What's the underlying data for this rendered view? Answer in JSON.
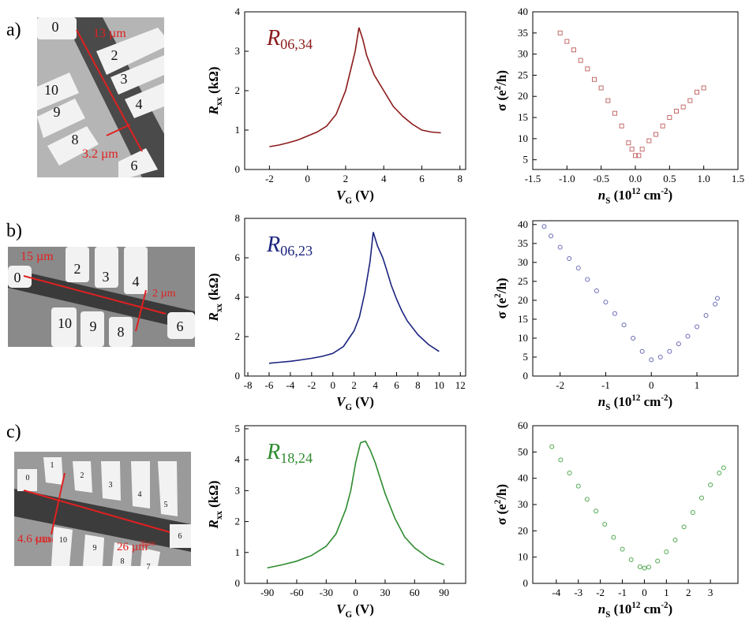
{
  "panels": [
    {
      "letter": "a)",
      "electrodes": [
        "0",
        "2",
        "3",
        "4",
        "10",
        "9",
        "8",
        "6"
      ],
      "scales": [
        "13 µm",
        "3.2 µm"
      ]
    },
    {
      "letter": "b)",
      "electrodes": [
        "0",
        "2",
        "3",
        "4",
        "10",
        "9",
        "8",
        "6"
      ],
      "scales": [
        "15 µm",
        "2 µm"
      ]
    },
    {
      "letter": "c)",
      "electrodes": [
        "0",
        "1",
        "2",
        "3",
        "4",
        "5",
        "10",
        "9",
        "8",
        "7",
        "6"
      ],
      "scales": [
        "4.6 µm",
        "4.6µm",
        "26 µm",
        "26µm"
      ]
    }
  ],
  "chart_data": [
    {
      "type": "line",
      "label": [
        {
          "t": "R",
          "italic": true
        },
        {
          "t": "06,34",
          "sub": true
        }
      ],
      "xlabel": [
        {
          "t": "V",
          "italic": true
        },
        {
          "t": "G",
          "sub": true
        },
        {
          "t": " (V)"
        }
      ],
      "ylabel": [
        {
          "t": "R",
          "italic": true
        },
        {
          "t": "xx",
          "sub": true
        },
        {
          "t": " (kΩ)"
        }
      ],
      "x": [
        -2,
        -1.5,
        -1,
        -0.5,
        0,
        0.5,
        1,
        1.5,
        2,
        2.3,
        2.5,
        2.7,
        2.9,
        3.1,
        3.5,
        4,
        4.5,
        5,
        5.5,
        6,
        6.5,
        7
      ],
      "series": [
        {
          "color": "#8b1a1a",
          "values": [
            0.58,
            0.62,
            0.68,
            0.75,
            0.85,
            0.95,
            1.1,
            1.4,
            2.0,
            2.6,
            3.0,
            3.6,
            3.3,
            2.9,
            2.4,
            2.0,
            1.6,
            1.35,
            1.15,
            1.0,
            0.95,
            0.93
          ]
        }
      ],
      "xlim": [
        -3.3,
        8.3
      ],
      "ylim": [
        0,
        4
      ],
      "xticks": [
        -2,
        0,
        2,
        4,
        6,
        8
      ],
      "yticks": [
        0,
        1,
        2,
        3,
        4
      ]
    },
    {
      "type": "scatter",
      "marker": "square",
      "xlabel": [
        {
          "t": "n",
          "italic": true
        },
        {
          "t": "S",
          "sub": true
        },
        {
          "t": " (10"
        },
        {
          "t": "12",
          "sup": true
        },
        {
          "t": " cm"
        },
        {
          "t": "-2",
          "sup": true
        },
        {
          "t": ")"
        }
      ],
      "ylabel": [
        {
          "t": "σ (e"
        },
        {
          "t": "2",
          "sup": true
        },
        {
          "t": "/h)"
        }
      ],
      "x": [
        -1.1,
        -1.0,
        -0.9,
        -0.8,
        -0.7,
        -0.6,
        -0.5,
        -0.4,
        -0.3,
        -0.2,
        -0.1,
        -0.05,
        0,
        0.05,
        0.1,
        0.2,
        0.3,
        0.4,
        0.5,
        0.6,
        0.7,
        0.8,
        0.9,
        1.0
      ],
      "series": [
        {
          "color": "#c46a6a",
          "values": [
            35,
            33,
            31,
            28.5,
            26.5,
            24,
            22,
            19,
            16,
            13,
            9,
            7.5,
            6,
            6,
            7.5,
            9.5,
            11,
            13,
            15,
            16.5,
            17.5,
            19,
            21,
            22
          ]
        }
      ],
      "xlim": [
        -1.5,
        1.5
      ],
      "ylim": [
        2.7,
        40
      ],
      "xticks": [
        {
          "value": -1.5,
          "label": "-1.5"
        },
        {
          "value": -1,
          "label": "-1.0"
        },
        {
          "value": -0.5,
          "label": "-0.5"
        },
        {
          "value": 0,
          "label": "0.0"
        },
        {
          "value": 0.5,
          "label": "0.5"
        },
        {
          "value": 1,
          "label": "1.0"
        },
        {
          "value": 1.5,
          "label": "1.5"
        }
      ],
      "yticks": [
        5,
        10,
        15,
        20,
        25,
        30,
        35,
        40
      ]
    },
    {
      "type": "line",
      "label": [
        {
          "t": "R",
          "italic": true
        },
        {
          "t": "06,23",
          "sub": true
        }
      ],
      "xlabel": [
        {
          "t": "V",
          "italic": true
        },
        {
          "t": "G",
          "sub": true
        },
        {
          "t": " (V)"
        }
      ],
      "ylabel": [
        {
          "t": "R",
          "italic": true
        },
        {
          "t": "xx",
          "sub": true
        },
        {
          "t": " (kΩ)"
        }
      ],
      "x": [
        -6,
        -5,
        -4,
        -3,
        -2,
        -1,
        0,
        1,
        2,
        2.5,
        3,
        3.5,
        3.8,
        4.2,
        4.7,
        5,
        5.5,
        6,
        6.5,
        7,
        8,
        9,
        10
      ],
      "series": [
        {
          "color": "#1a237e",
          "values": [
            0.65,
            0.7,
            0.75,
            0.82,
            0.9,
            1.0,
            1.15,
            1.5,
            2.3,
            3.0,
            4.2,
            5.8,
            7.3,
            6.6,
            6.0,
            5.5,
            4.6,
            3.9,
            3.3,
            2.8,
            2.1,
            1.6,
            1.25
          ]
        }
      ],
      "xlim": [
        -8.3,
        12.5
      ],
      "ylim": [
        0,
        8
      ],
      "xticks": [
        -8,
        -6,
        -4,
        -2,
        0,
        2,
        4,
        6,
        8,
        10,
        12
      ],
      "yticks": [
        0,
        2,
        4,
        6,
        8
      ]
    },
    {
      "type": "scatter",
      "marker": "circle",
      "xlabel": [
        {
          "t": "n",
          "italic": true
        },
        {
          "t": "S",
          "sub": true
        },
        {
          "t": " (10"
        },
        {
          "t": "12",
          "sup": true
        },
        {
          "t": " cm"
        },
        {
          "t": "-2",
          "sup": true
        },
        {
          "t": ")"
        }
      ],
      "ylabel": [
        {
          "t": "σ (e"
        },
        {
          "t": "2",
          "sup": true
        },
        {
          "t": "/h)"
        }
      ],
      "x": [
        -2.35,
        -2.2,
        -2,
        -1.8,
        -1.6,
        -1.4,
        -1.2,
        -1,
        -0.8,
        -0.6,
        -0.4,
        -0.2,
        0,
        0.2,
        0.4,
        0.6,
        0.8,
        1,
        1.2,
        1.4,
        1.45
      ],
      "series": [
        {
          "color": "#6a6ab8",
          "values": [
            39.5,
            37,
            34,
            31,
            28.5,
            25.5,
            22.5,
            19.5,
            16.5,
            13.5,
            10,
            6.5,
            4.3,
            5,
            6.5,
            8.5,
            10.5,
            13,
            16,
            19,
            20.5
          ]
        }
      ],
      "xlim": [
        -2.6,
        1.9
      ],
      "ylim": [
        0,
        41
      ],
      "xticks": [
        -2,
        -1,
        0,
        1
      ],
      "yticks": [
        0,
        5,
        10,
        15,
        20,
        25,
        30,
        35,
        40
      ]
    },
    {
      "type": "line",
      "label": [
        {
          "t": "R",
          "italic": true
        },
        {
          "t": "18,24",
          "sub": true
        }
      ],
      "xlabel": [
        {
          "t": "V",
          "italic": true
        },
        {
          "t": "G",
          "sub": true
        },
        {
          "t": " (V)"
        }
      ],
      "ylabel": [
        {
          "t": "R",
          "italic": true
        },
        {
          "t": "xx",
          "sub": true
        },
        {
          "t": " (kΩ)"
        }
      ],
      "x": [
        -90,
        -75,
        -60,
        -45,
        -30,
        -20,
        -10,
        -5,
        0,
        5,
        10,
        15,
        20,
        30,
        40,
        50,
        60,
        75,
        90
      ],
      "series": [
        {
          "color": "#2e8b2e",
          "values": [
            0.5,
            0.6,
            0.72,
            0.9,
            1.2,
            1.6,
            2.4,
            3.0,
            3.9,
            4.55,
            4.6,
            4.3,
            3.9,
            2.9,
            2.1,
            1.5,
            1.15,
            0.8,
            0.6
          ]
        }
      ],
      "xlim": [
        -113,
        112
      ],
      "ylim": [
        0,
        5.1
      ],
      "xticks": [
        -90,
        -60,
        -30,
        0,
        30,
        60,
        90
      ],
      "yticks": [
        0,
        1,
        2,
        3,
        4,
        5
      ]
    },
    {
      "type": "scatter",
      "marker": "circle",
      "xlabel": [
        {
          "t": "n",
          "italic": true
        },
        {
          "t": "S",
          "sub": true
        },
        {
          "t": " (10"
        },
        {
          "t": "12",
          "sup": true
        },
        {
          "t": " cm"
        },
        {
          "t": "-2",
          "sup": true
        },
        {
          "t": ")"
        }
      ],
      "ylabel": [
        {
          "t": "σ (e"
        },
        {
          "t": "2",
          "sup": true
        },
        {
          "t": "/h)"
        }
      ],
      "x": [
        -4.2,
        -3.8,
        -3.4,
        -3,
        -2.6,
        -2.2,
        -1.8,
        -1.4,
        -1,
        -0.6,
        -0.2,
        0,
        0.2,
        0.6,
        1,
        1.4,
        1.8,
        2.2,
        2.6,
        3,
        3.4,
        3.6
      ],
      "series": [
        {
          "color": "#4ea84e",
          "values": [
            52,
            47,
            42,
            37,
            32,
            27.5,
            22.5,
            17.5,
            13,
            9,
            6.3,
            5.8,
            6.2,
            8.5,
            12,
            16.5,
            21.5,
            27,
            32.5,
            37.5,
            42,
            44
          ]
        }
      ],
      "xlim": [
        -5.07,
        4.25
      ],
      "ylim": [
        0,
        60
      ],
      "xticks": [
        -4,
        -3,
        -2,
        -1,
        0,
        1,
        2,
        3
      ],
      "yticks": [
        0,
        10,
        20,
        30,
        40,
        50,
        60
      ]
    }
  ]
}
